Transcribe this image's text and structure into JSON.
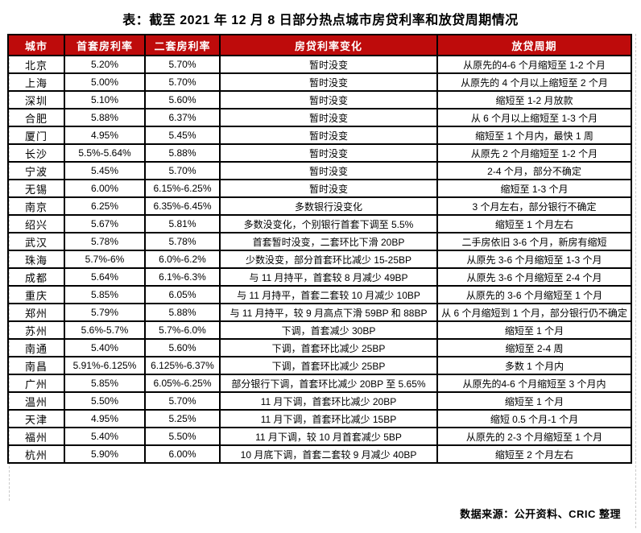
{
  "title": "表：截至 2021 年 12 月 8 日部分热点城市房贷利率和放贷周期情况",
  "table": {
    "columns": [
      "城市",
      "首套房利率",
      "二套房利率",
      "房贷利率变化",
      "放贷周期"
    ],
    "rows": [
      [
        "北京",
        "5.20%",
        "5.70%",
        "暂时没变",
        "从原先的4-6 个月缩短至 1-2 个月"
      ],
      [
        "上海",
        "5.00%",
        "5.70%",
        "暂时没变",
        "从原先的 4 个月以上缩短至 2 个月"
      ],
      [
        "深圳",
        "5.10%",
        "5.60%",
        "暂时没变",
        "缩短至 1-2 月放款"
      ],
      [
        "合肥",
        "5.88%",
        "6.37%",
        "暂时没变",
        "从 6 个月以上缩短至 1-3 个月"
      ],
      [
        "厦门",
        "4.95%",
        "5.45%",
        "暂时没变",
        "缩短至 1 个月内，最快 1 周"
      ],
      [
        "长沙",
        "5.5%-5.64%",
        "5.88%",
        "暂时没变",
        "从原先 2 个月缩短至 1-2 个月"
      ],
      [
        "宁波",
        "5.45%",
        "5.70%",
        "暂时没变",
        "2-4 个月，部分不确定"
      ],
      [
        "无锡",
        "6.00%",
        "6.15%-6.25%",
        "暂时没变",
        "缩短至 1-3 个月"
      ],
      [
        "南京",
        "6.25%",
        "6.35%-6.45%",
        "多数银行没变化",
        "3 个月左右，部分银行不确定"
      ],
      [
        "绍兴",
        "5.67%",
        "5.81%",
        "多数没变化，个别银行首套下调至 5.5%",
        "缩短至 1 个月左右"
      ],
      [
        "武汉",
        "5.78%",
        "5.78%",
        "首套暂时没变，二套环比下滑 20BP",
        "二手房依旧 3-6 个月，新房有缩短"
      ],
      [
        "珠海",
        "5.7%-6%",
        "6.0%-6.2%",
        "少数没变，部分首套环比减少 15-25BP",
        "从原先 3-6 个月缩短至 1-3 个月"
      ],
      [
        "成都",
        "5.64%",
        "6.1%-6.3%",
        "与 11 月持平，首套较 8 月减少 49BP",
        "从原先 3-6 个月缩短至 2-4 个月"
      ],
      [
        "重庆",
        "5.85%",
        "6.05%",
        "与 11 月持平，首套二套较 10 月减少 10BP",
        "从原先的 3-6 个月缩短至 1 个月"
      ],
      [
        "郑州",
        "5.79%",
        "5.88%",
        "与 11 月持平，较 9 月高点下滑 59BP 和 88BP",
        "从 6 个月缩短到 1 个月，部分银行仍不确定"
      ],
      [
        "苏州",
        "5.6%-5.7%",
        "5.7%-6.0%",
        "下调，首套减少 30BP",
        "缩短至 1 个月"
      ],
      [
        "南通",
        "5.40%",
        "5.60%",
        "下调，首套环比减少 25BP",
        "缩短至 2-4 周"
      ],
      [
        "南昌",
        "5.91%-6.125%",
        "6.125%-6.37%",
        "下调，首套环比减少 25BP",
        "多数 1 个月内"
      ],
      [
        "广州",
        "5.85%",
        "6.05%-6.25%",
        "部分银行下调，首套环比减少 20BP 至 5.65%",
        "从原先的4-6 个月缩短至 3 个月内"
      ],
      [
        "温州",
        "5.50%",
        "5.70%",
        "11 月下调，首套环比减少 20BP",
        "缩短至 1 个月"
      ],
      [
        "天津",
        "4.95%",
        "5.25%",
        "11 月下调，首套环比减少 15BP",
        "缩短 0.5 个月-1 个月"
      ],
      [
        "福州",
        "5.40%",
        "5.50%",
        "11 月下调，较 10 月首套减少 5BP",
        "从原先的 2-3 个月缩短至 1 个月"
      ],
      [
        "杭州",
        "5.90%",
        "6.00%",
        "10 月底下调，首套二套较 9 月减少 40BP",
        "缩短至 2 个月左右"
      ]
    ]
  },
  "footer": {
    "source": "数据来源：公开资料、CRIC 整理"
  },
  "colors": {
    "header_bg": "#be0b0b",
    "header_text": "#ffffff",
    "border": "#000000"
  }
}
